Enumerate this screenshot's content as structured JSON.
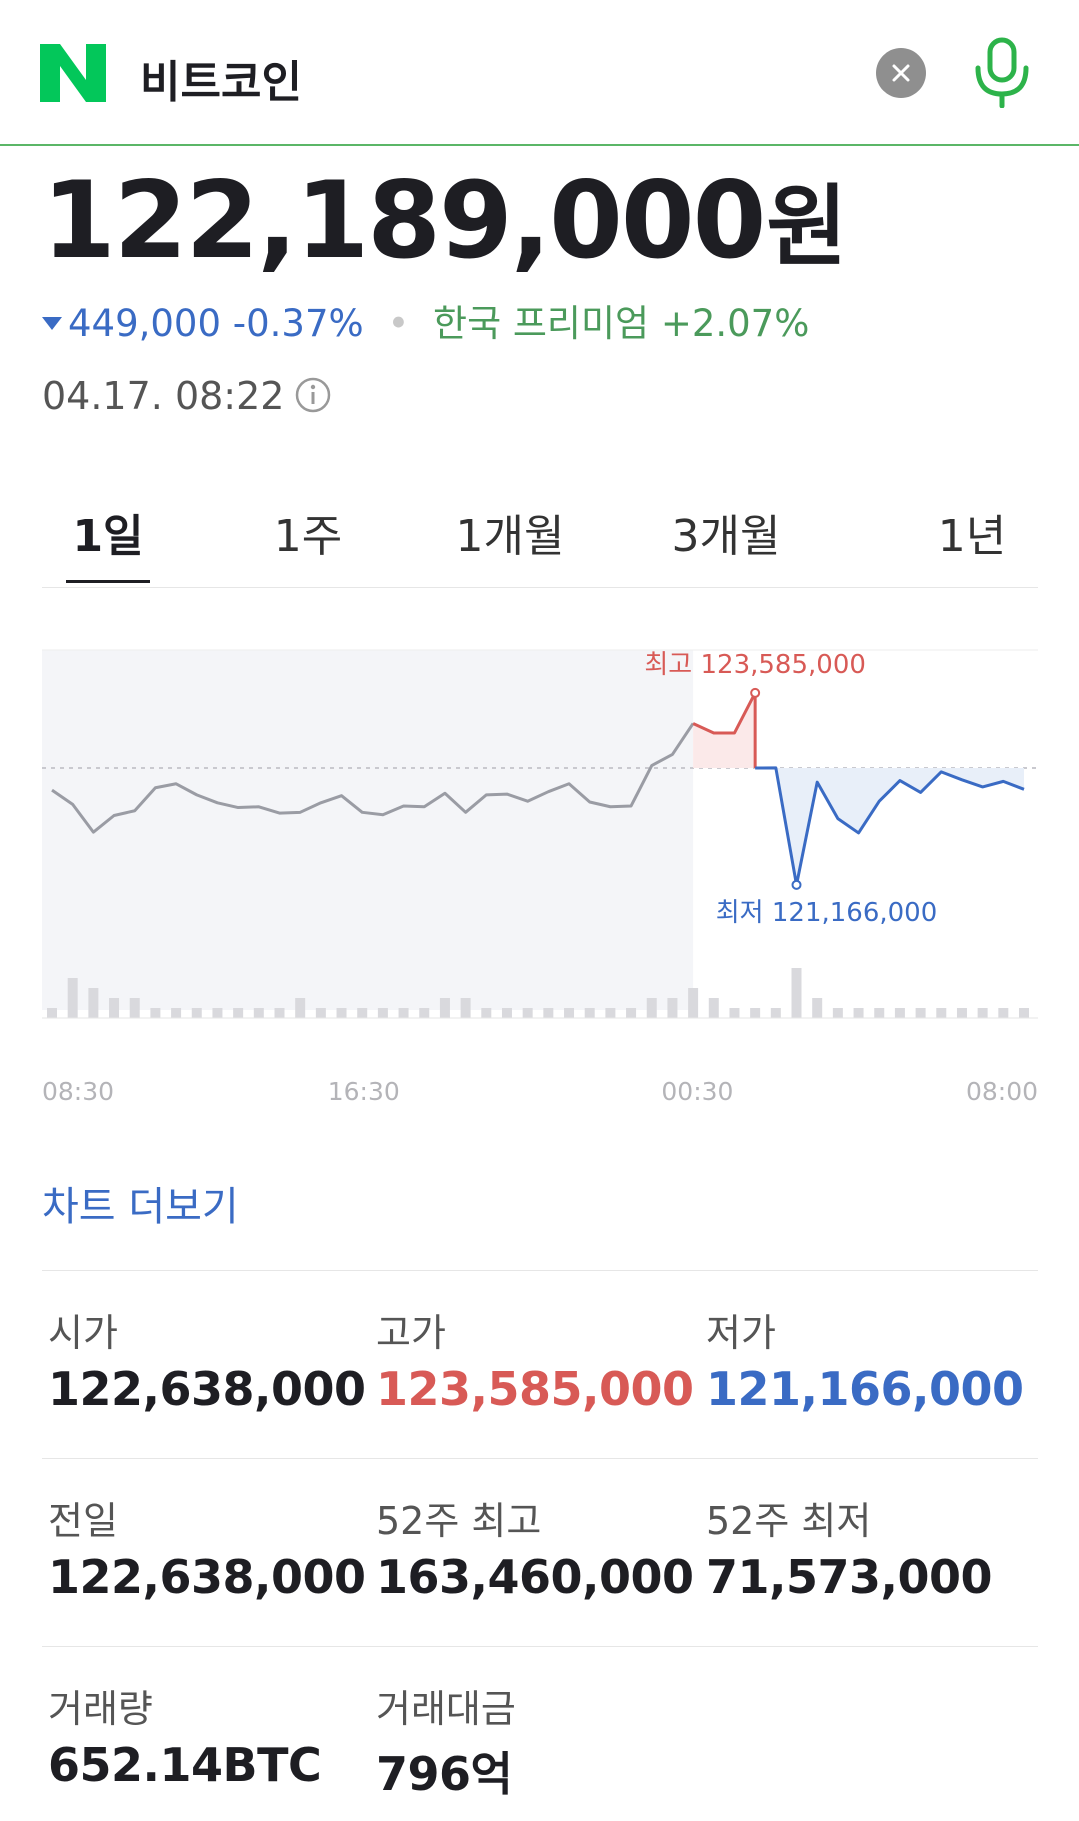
{
  "header": {
    "query": "비트코인",
    "logo_icon": "naver-n-logo-icon",
    "clear_icon": "close-icon",
    "mic_icon": "microphone-icon",
    "brand_color": "#03c75a"
  },
  "price": {
    "value": "122,189,000",
    "unit": "원",
    "change_amount": "449,000",
    "change_percent": "-0.37%",
    "change_direction": "down",
    "premium_label": "한국 프리미엄",
    "premium_value": "+2.07%",
    "timestamp": "04.17. 08:22"
  },
  "tabs": [
    {
      "label": "1일",
      "active": true
    },
    {
      "label": "1주",
      "active": false
    },
    {
      "label": "1개월",
      "active": false
    },
    {
      "label": "3개월",
      "active": false
    },
    {
      "label": "1년",
      "active": false
    }
  ],
  "chart_data": {
    "type": "line",
    "x_ticks": [
      "08:30",
      "16:30",
      "00:30",
      "08:00"
    ],
    "high_label": "최고 123,585,000",
    "low_label": "최저 121,166,000",
    "high_value": 123585000,
    "low_value": 121166000,
    "reference_value": 122638000,
    "ylim": [
      121000000,
      124000000
    ],
    "colors": {
      "neutral": "#9a9ca4",
      "up": "#d85a56",
      "down": "#3a6bc4"
    },
    "series": [
      {
        "values": [
          122360000,
          122180000,
          121830000,
          122040000,
          122100000,
          122390000,
          122440000,
          122300000,
          122200000,
          122140000,
          122150000,
          122070000,
          122080000,
          122200000,
          122290000,
          122080000,
          122050000,
          122160000,
          122150000,
          122320000,
          122080000,
          122300000,
          122310000,
          122220000,
          122340000,
          122440000,
          122210000,
          122150000,
          122160000,
          122670000,
          122810000,
          123200000,
          123080000,
          123080000,
          123585000,
          122640000,
          121166000,
          122460000,
          122000000,
          121820000,
          122220000,
          122480000,
          122330000,
          122590000,
          122490000,
          122400000,
          122470000,
          122370000
        ]
      }
    ],
    "volume": [
      1,
      4,
      3,
      2,
      2,
      1,
      1,
      1,
      1,
      1,
      1,
      1,
      2,
      1,
      1,
      1,
      1,
      1,
      1,
      2,
      2,
      1,
      1,
      1,
      1,
      1,
      1,
      1,
      1,
      2,
      2,
      3,
      2,
      1,
      1,
      1,
      5,
      2,
      1,
      1,
      1,
      1,
      1,
      1,
      1,
      1,
      1,
      1
    ],
    "current_index": 31
  },
  "more_link": "차트 더보기",
  "stats": [
    {
      "label": "시가",
      "value": "122,638,000",
      "tone": "normal"
    },
    {
      "label": "고가",
      "value": "123,585,000",
      "tone": "high"
    },
    {
      "label": "저가",
      "value": "121,166,000",
      "tone": "low"
    },
    {
      "label": "전일",
      "value": "122,638,000",
      "tone": "normal"
    },
    {
      "label": "52주 최고",
      "value": "163,460,000",
      "tone": "normal"
    },
    {
      "label": "52주 최저",
      "value": "71,573,000",
      "tone": "normal"
    },
    {
      "label": "거래량",
      "value": "652.14BTC",
      "tone": "normal"
    },
    {
      "label": "거래대금",
      "value": "796억",
      "tone": "normal"
    }
  ]
}
